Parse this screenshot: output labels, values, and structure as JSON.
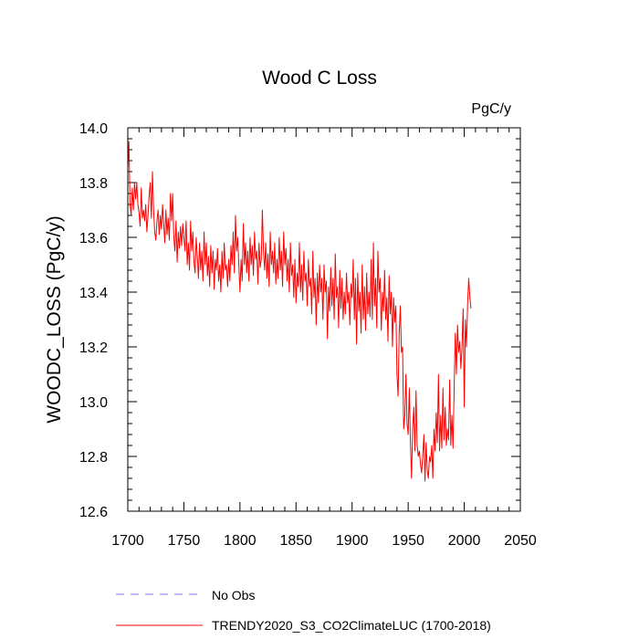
{
  "chart_data": {
    "type": "line",
    "title": "Wood C Loss",
    "units": "PgC/y",
    "xlabel": "",
    "ylabel": "WOODC_LOSS  (PgC/y)",
    "xlim": [
      1700,
      2050
    ],
    "ylim": [
      12.6,
      14.0
    ],
    "x_ticks": [
      1700,
      1750,
      1800,
      1850,
      1900,
      1950,
      2000,
      2050
    ],
    "x_tick_labels": [
      "1700",
      "1750",
      "1800",
      "1850",
      "1900",
      "1950",
      "2000",
      "2050"
    ],
    "y_ticks": [
      12.6,
      12.8,
      13.0,
      13.2,
      13.4,
      13.6,
      13.8,
      14.0
    ],
    "y_tick_labels": [
      "12.6",
      "12.8",
      "13.0",
      "13.2",
      "13.4",
      "13.6",
      "13.8",
      "14.0"
    ],
    "legend": {
      "position": "bottom",
      "entries": [
        {
          "label": "No Obs",
          "color": "#7777ff",
          "style": "dashed"
        },
        {
          "label": "TRENDY2020_S3_CO2ClimateLUC (1700-2018)",
          "color": "#ff0000",
          "style": "solid"
        }
      ]
    },
    "series": [
      {
        "name": "TRENDY2020_S3_CO2ClimateLUC (1700-2018)",
        "color": "#ff0000",
        "x_start": 1700,
        "x_step": 1,
        "values": [
          13.85,
          13.95,
          13.72,
          13.68,
          13.78,
          13.7,
          13.8,
          13.74,
          13.8,
          13.72,
          13.69,
          13.64,
          13.78,
          13.67,
          13.7,
          13.66,
          13.72,
          13.62,
          13.68,
          13.75,
          13.8,
          13.67,
          13.84,
          13.7,
          13.62,
          13.59,
          13.66,
          13.7,
          13.61,
          13.68,
          13.63,
          13.72,
          13.65,
          13.58,
          13.7,
          13.61,
          13.67,
          13.59,
          13.76,
          13.66,
          13.76,
          13.6,
          13.55,
          13.66,
          13.51,
          13.62,
          13.56,
          13.64,
          13.57,
          13.65,
          13.6,
          13.55,
          13.66,
          13.5,
          13.58,
          13.48,
          13.66,
          13.55,
          13.62,
          13.51,
          13.47,
          13.6,
          13.53,
          13.45,
          13.58,
          13.48,
          13.55,
          13.44,
          13.62,
          13.5,
          13.58,
          13.46,
          13.53,
          13.42,
          13.57,
          13.47,
          13.55,
          13.41,
          13.52,
          13.48,
          13.56,
          13.44,
          13.5,
          13.4,
          13.55,
          13.45,
          13.58,
          13.48,
          13.5,
          13.42,
          13.52,
          13.44,
          13.57,
          13.5,
          13.62,
          13.47,
          13.68,
          13.55,
          13.6,
          13.5,
          13.4,
          13.52,
          13.44,
          13.65,
          13.5,
          13.58,
          13.47,
          13.55,
          13.44,
          13.6,
          13.5,
          13.57,
          13.46,
          13.62,
          13.52,
          13.55,
          13.43,
          13.58,
          13.49,
          13.52,
          13.7,
          13.55,
          13.48,
          13.58,
          13.45,
          13.54,
          13.42,
          13.62,
          13.5,
          13.55,
          13.47,
          13.58,
          13.43,
          13.52,
          13.45,
          13.6,
          13.48,
          13.55,
          13.42,
          13.62,
          13.5,
          13.56,
          13.44,
          13.52,
          13.4,
          13.58,
          13.46,
          13.5,
          13.38,
          13.52,
          13.36,
          13.47,
          13.42,
          13.58,
          13.4,
          13.5,
          13.37,
          13.55,
          13.44,
          13.47,
          13.35,
          13.52,
          13.42,
          13.45,
          13.32,
          13.55,
          13.38,
          13.45,
          13.28,
          13.47,
          13.36,
          13.5,
          13.4,
          13.45,
          13.3,
          13.5,
          13.4,
          13.44,
          13.23,
          13.42,
          13.33,
          13.49,
          13.35,
          13.45,
          13.3,
          13.54,
          13.38,
          13.42,
          13.27,
          13.48,
          13.34,
          13.45,
          13.3,
          13.4,
          13.32,
          13.47,
          13.36,
          13.4,
          13.28,
          13.43,
          13.38,
          13.52,
          13.3,
          13.45,
          13.21,
          13.47,
          13.33,
          13.4,
          13.25,
          13.5,
          13.3,
          13.42,
          13.26,
          13.47,
          13.32,
          13.4,
          13.31,
          13.52,
          13.3,
          13.58,
          13.35,
          13.45,
          13.27,
          13.55,
          13.4,
          13.45,
          13.26,
          13.4,
          13.33,
          13.48,
          13.3,
          13.38,
          13.22,
          13.46,
          13.32,
          13.4,
          13.2,
          13.38,
          13.29,
          13.35,
          13.1,
          13.02,
          13.25,
          13.35,
          13.18,
          13.2,
          12.9,
          12.95,
          13.1,
          12.92,
          12.88,
          13.05,
          12.85,
          12.72,
          12.9,
          12.98,
          12.82,
          13.04,
          12.84,
          12.8,
          12.82,
          12.77,
          12.74,
          12.8,
          12.88,
          12.71,
          12.85,
          12.75,
          12.72,
          12.8,
          12.78,
          12.84,
          12.72,
          12.9,
          12.82,
          12.96,
          12.85,
          13.1,
          12.82,
          12.95,
          12.83,
          13.05,
          12.86,
          12.98,
          12.84,
          12.9,
          12.86,
          13.08,
          12.84,
          12.95,
          12.83,
          13.05,
          13.25,
          13.1,
          13.28,
          13.18,
          13.22,
          13.12,
          13.2,
          13.34,
          12.98,
          13.3,
          13.2,
          13.36,
          13.45,
          13.38,
          13.34
        ]
      }
    ]
  }
}
